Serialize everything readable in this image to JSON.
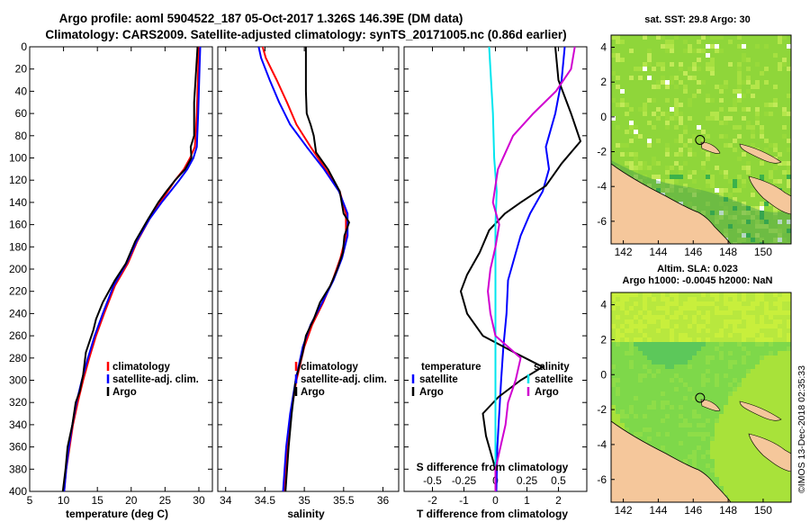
{
  "header": {
    "line1": "Argo profile: aoml 5904522_187 05-Oct-2017 1.326S 146.39E (DM data)",
    "line2": "Climatology: CARS2009. Satellite-adjusted climatology: synTS_20171005.nc (0.86d earlier)"
  },
  "watermark": "©IMOS 13-Dec-2018 02:35:33",
  "colors": {
    "climatology": "#ff0000",
    "satellite": "#0000ff",
    "argo": "#000000",
    "sat_s": "#00e5ee",
    "argo_s": "#d000d0",
    "land": "#f5c79b"
  },
  "chart_data": [
    {
      "type": "line",
      "id": "temperature",
      "xlabel": "temperature (deg C)",
      "ylabel": "",
      "xlim": [
        5,
        32
      ],
      "ylim": [
        400,
        0
      ],
      "xticks": [
        5,
        10,
        15,
        20,
        25,
        30
      ],
      "yticks": [
        0,
        20,
        40,
        60,
        80,
        100,
        120,
        140,
        160,
        180,
        200,
        220,
        240,
        260,
        280,
        300,
        320,
        340,
        360,
        380,
        400
      ],
      "legend": [
        "climatology",
        "satellite-adj. clim.",
        "Argo"
      ],
      "legend_position": "bottom-right",
      "series": [
        {
          "name": "climatology",
          "color": "#ff0000",
          "points": [
            [
              30.0,
              0
            ],
            [
              29.9,
              20
            ],
            [
              29.7,
              60
            ],
            [
              29.4,
              90
            ],
            [
              28.7,
              100
            ],
            [
              27.8,
              110
            ],
            [
              26.5,
              120
            ],
            [
              25.4,
              130
            ],
            [
              24.3,
              140
            ],
            [
              22.7,
              155
            ],
            [
              20.9,
              175
            ],
            [
              19.5,
              195
            ],
            [
              17.6,
              215
            ],
            [
              16.0,
              240
            ],
            [
              14.8,
              260
            ],
            [
              13.8,
              280
            ],
            [
              12.9,
              300
            ],
            [
              12.1,
              320
            ],
            [
              11.4,
              340
            ],
            [
              10.9,
              360
            ],
            [
              10.4,
              380
            ],
            [
              10.1,
              400
            ]
          ]
        },
        {
          "name": "satellite-adj. clim.",
          "color": "#0000ff",
          "points": [
            [
              30.2,
              0
            ],
            [
              30.1,
              20
            ],
            [
              29.9,
              60
            ],
            [
              29.7,
              90
            ],
            [
              29.2,
              100
            ],
            [
              28.3,
              110
            ],
            [
              27.1,
              120
            ],
            [
              25.8,
              130
            ],
            [
              24.5,
              140
            ],
            [
              22.7,
              155
            ],
            [
              20.8,
              175
            ],
            [
              19.3,
              195
            ],
            [
              17.4,
              215
            ],
            [
              15.8,
              240
            ],
            [
              14.6,
              260
            ],
            [
              13.6,
              280
            ],
            [
              12.7,
              300
            ],
            [
              11.9,
              320
            ],
            [
              11.3,
              340
            ],
            [
              10.8,
              360
            ],
            [
              10.4,
              380
            ],
            [
              10.1,
              400
            ]
          ]
        },
        {
          "name": "Argo",
          "color": "#000000",
          "points": [
            [
              29.8,
              0
            ],
            [
              29.6,
              20
            ],
            [
              29.3,
              50
            ],
            [
              29.3,
              80
            ],
            [
              28.8,
              90
            ],
            [
              28.9,
              100
            ],
            [
              28.0,
              110
            ],
            [
              26.5,
              120
            ],
            [
              25.2,
              130
            ],
            [
              24.0,
              140
            ],
            [
              22.5,
              155
            ],
            [
              20.6,
              175
            ],
            [
              19.2,
              195
            ],
            [
              17.6,
              210
            ],
            [
              15.8,
              230
            ],
            [
              14.8,
              245
            ],
            [
              14.4,
              255
            ],
            [
              13.3,
              275
            ],
            [
              12.9,
              295
            ],
            [
              12.4,
              310
            ],
            [
              11.8,
              320
            ],
            [
              11.3,
              340
            ],
            [
              10.6,
              360
            ],
            [
              10.3,
              380
            ],
            [
              9.9,
              400
            ]
          ]
        }
      ]
    },
    {
      "type": "line",
      "id": "salinity",
      "xlabel": "salinity",
      "ylabel": "",
      "xlim": [
        33.9,
        36.2
      ],
      "ylim": [
        400,
        0
      ],
      "xticks": [
        34,
        34.5,
        35,
        35.5,
        36
      ],
      "legend": [
        "climatology",
        "satellite-adj. clim.",
        "Argo"
      ],
      "legend_position": "bottom-right",
      "series": [
        {
          "name": "climatology",
          "color": "#ff0000",
          "points": [
            [
              34.47,
              0
            ],
            [
              34.51,
              10
            ],
            [
              34.65,
              30
            ],
            [
              34.78,
              50
            ],
            [
              34.9,
              70
            ],
            [
              35.08,
              90
            ],
            [
              35.27,
              110
            ],
            [
              35.45,
              130
            ],
            [
              35.53,
              150
            ],
            [
              35.53,
              170
            ],
            [
              35.46,
              190
            ],
            [
              35.36,
              210
            ],
            [
              35.24,
              230
            ],
            [
              35.1,
              250
            ],
            [
              35.0,
              270
            ],
            [
              34.9,
              300
            ],
            [
              34.83,
              330
            ],
            [
              34.78,
              360
            ],
            [
              34.75,
              400
            ]
          ]
        },
        {
          "name": "satellite-adj. clim.",
          "color": "#0000ff",
          "points": [
            [
              34.42,
              0
            ],
            [
              34.45,
              10
            ],
            [
              34.56,
              30
            ],
            [
              34.68,
              50
            ],
            [
              34.82,
              70
            ],
            [
              35.03,
              90
            ],
            [
              35.25,
              110
            ],
            [
              35.44,
              130
            ],
            [
              35.55,
              150
            ],
            [
              35.55,
              170
            ],
            [
              35.48,
              190
            ],
            [
              35.37,
              210
            ],
            [
              35.23,
              230
            ],
            [
              35.08,
              250
            ],
            [
              34.98,
              270
            ],
            [
              34.89,
              300
            ],
            [
              34.82,
              330
            ],
            [
              34.77,
              360
            ],
            [
              34.73,
              400
            ]
          ]
        },
        {
          "name": "Argo",
          "color": "#000000",
          "points": [
            [
              35.02,
              0
            ],
            [
              35.02,
              40
            ],
            [
              35.03,
              60
            ],
            [
              35.08,
              70
            ],
            [
              35.12,
              80
            ],
            [
              35.15,
              95
            ],
            [
              35.3,
              110
            ],
            [
              35.45,
              130
            ],
            [
              35.5,
              150
            ],
            [
              35.57,
              158
            ],
            [
              35.51,
              170
            ],
            [
              35.49,
              185
            ],
            [
              35.42,
              200
            ],
            [
              35.33,
              215
            ],
            [
              35.2,
              230
            ],
            [
              35.12,
              245
            ],
            [
              35.02,
              260
            ],
            [
              34.98,
              275
            ],
            [
              34.89,
              300
            ],
            [
              34.84,
              330
            ],
            [
              34.8,
              360
            ],
            [
              34.76,
              400
            ]
          ]
        }
      ]
    },
    {
      "type": "line",
      "id": "difference",
      "xlabel": "T difference from climatology",
      "x2label": "S difference from climatology",
      "xlim": [
        -2.9,
        2.9
      ],
      "ylim": [
        400,
        0
      ],
      "xticks": [
        -2,
        -1,
        0,
        1,
        2
      ],
      "x2ticks": [
        -0.5,
        -0.25,
        0,
        0.25,
        0.5
      ],
      "x2lim": [
        -0.725,
        0.725
      ],
      "legend_left_title": "temperature",
      "legend_right_title": "salinity",
      "legend_left": [
        "satellite",
        "Argo"
      ],
      "legend_right": [
        "satellite",
        "Argo"
      ],
      "series": [
        {
          "name": "T satellite",
          "axis": "T",
          "color": "#0000ff",
          "points": [
            [
              2.2,
              0
            ],
            [
              2.1,
              30
            ],
            [
              1.9,
              60
            ],
            [
              1.6,
              90
            ],
            [
              1.7,
              110
            ],
            [
              1.5,
              130
            ],
            [
              1.1,
              150
            ],
            [
              0.8,
              170
            ],
            [
              0.6,
              190
            ],
            [
              0.4,
              210
            ],
            [
              0.35,
              240
            ],
            [
              0.25,
              270
            ],
            [
              0.18,
              300
            ],
            [
              0.12,
              330
            ],
            [
              0.06,
              360
            ],
            [
              0.03,
              400
            ]
          ]
        },
        {
          "name": "T Argo",
          "axis": "T",
          "color": "#000000",
          "points": [
            [
              1.9,
              0
            ],
            [
              2.0,
              30
            ],
            [
              2.4,
              60
            ],
            [
              2.7,
              85
            ],
            [
              2.1,
              105
            ],
            [
              1.6,
              125
            ],
            [
              0.8,
              140
            ],
            [
              0.3,
              150
            ],
            [
              -0.2,
              165
            ],
            [
              -0.5,
              185
            ],
            [
              -0.9,
              205
            ],
            [
              -1.1,
              220
            ],
            [
              -0.9,
              240
            ],
            [
              -0.4,
              260
            ],
            [
              0.6,
              275
            ],
            [
              1.5,
              288
            ],
            [
              0.8,
              300
            ],
            [
              0.1,
              315
            ],
            [
              -0.4,
              330
            ],
            [
              -0.3,
              350
            ],
            [
              0.0,
              380
            ],
            [
              0.0,
              400
            ]
          ]
        },
        {
          "name": "S satellite",
          "axis": "S",
          "color": "#00e5ee",
          "points": [
            [
              -0.05,
              0
            ],
            [
              -0.04,
              20
            ],
            [
              -0.02,
              60
            ],
            [
              -0.01,
              100
            ],
            [
              0.01,
              130
            ],
            [
              0.0,
              160
            ],
            [
              0.0,
              200
            ],
            [
              0.0,
              240
            ],
            [
              0.0,
              280
            ],
            [
              0.0,
              320
            ],
            [
              0.0,
              360
            ],
            [
              0.0,
              400
            ]
          ]
        },
        {
          "name": "S Argo",
          "axis": "S",
          "color": "#d000d0",
          "points": [
            [
              0.63,
              0
            ],
            [
              0.6,
              20
            ],
            [
              0.48,
              40
            ],
            [
              0.3,
              60
            ],
            [
              0.14,
              80
            ],
            [
              0.02,
              110
            ],
            [
              -0.02,
              140
            ],
            [
              0.03,
              160
            ],
            [
              0.0,
              180
            ],
            [
              -0.04,
              200
            ],
            [
              -0.06,
              220
            ],
            [
              -0.04,
              240
            ],
            [
              0.0,
              260
            ],
            [
              0.2,
              280
            ],
            [
              0.16,
              300
            ],
            [
              0.1,
              320
            ],
            [
              0.08,
              340
            ],
            [
              0.0,
              380
            ],
            [
              0.0,
              400
            ]
          ]
        }
      ]
    },
    {
      "type": "heatmap",
      "id": "sst_map",
      "title": "sat. SST: 29.8 Argo: 30",
      "xlim": [
        141.3,
        151.6
      ],
      "ylim": [
        -7.3,
        4.7
      ],
      "xticks": [
        142,
        144,
        146,
        148,
        150
      ],
      "yticks": [
        -6,
        -4,
        -2,
        0,
        2,
        4
      ],
      "argo_position": [
        146.39,
        -1.326
      ]
    },
    {
      "type": "heatmap",
      "id": "sla_map",
      "title": "Altim. SLA: 0.023",
      "subtitle": "Argo h1000: -0.0045 h2000: NaN",
      "xlim": [
        141.3,
        151.6
      ],
      "ylim": [
        -7.3,
        4.7
      ],
      "xticks": [
        142,
        144,
        146,
        148,
        150
      ],
      "yticks": [
        -6,
        -4,
        -2,
        0,
        2,
        4
      ],
      "argo_position": [
        146.39,
        -1.326
      ]
    }
  ]
}
